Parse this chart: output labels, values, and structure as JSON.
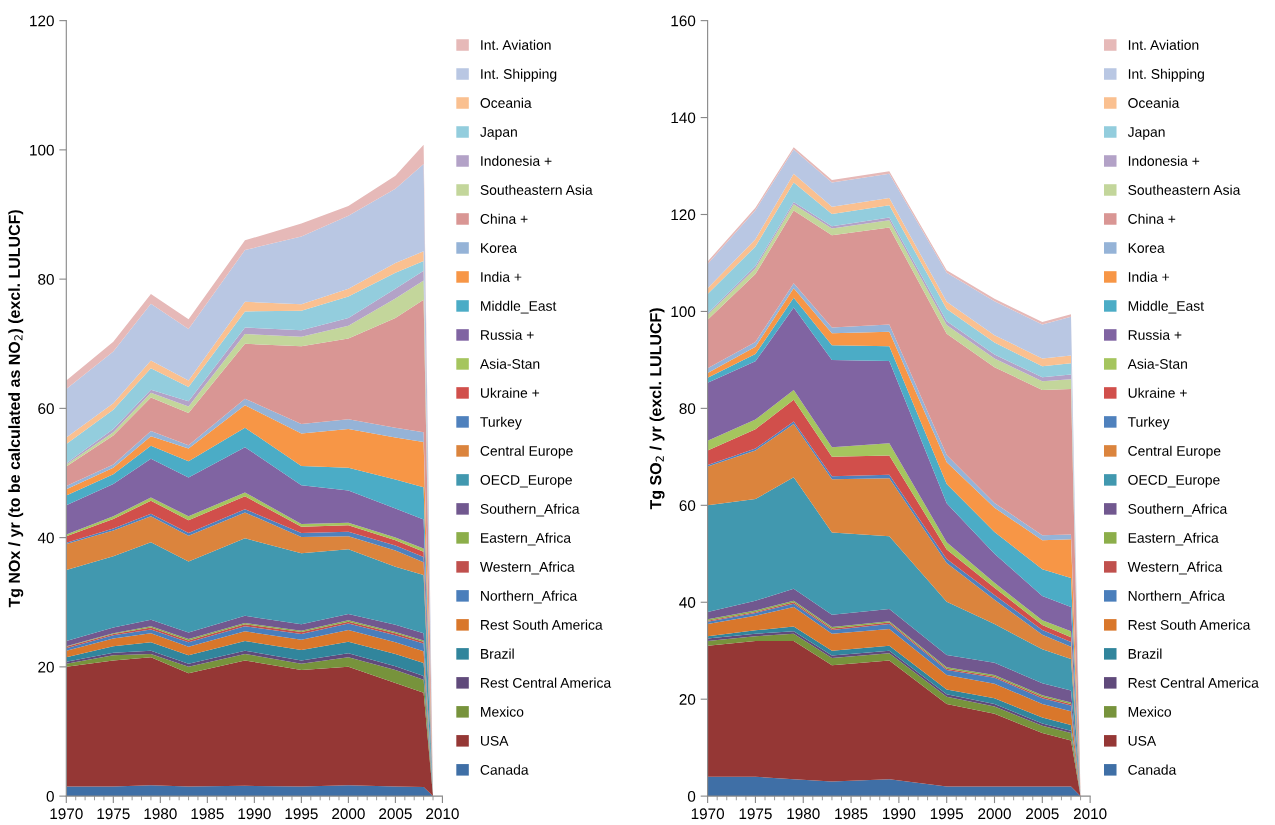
{
  "chart_data": [
    {
      "type": "area",
      "stacked": true,
      "ylabel": "Tg NOx / yr (to be calculated as NO$_{2}$) (excl. LULUCF)",
      "x": [
        1970,
        1975,
        1979,
        1983,
        1989,
        1995,
        2000,
        2005,
        2008,
        2009
      ],
      "xlim": [
        1970,
        2010
      ],
      "xticks": [
        1970,
        1975,
        1980,
        1985,
        1990,
        1995,
        2000,
        2005,
        2010
      ],
      "ylim": [
        0,
        120
      ],
      "yticks": [
        0,
        20,
        40,
        60,
        80,
        100,
        120
      ],
      "grid": false,
      "legend": "right",
      "series": [
        {
          "name": "Canada",
          "color": "#3f6fa6",
          "values": [
            1.5,
            1.5,
            1.7,
            1.5,
            1.6,
            1.5,
            1.7,
            1.5,
            1.4,
            0
          ]
        },
        {
          "name": "USA",
          "color": "#953735",
          "values": [
            18.5,
            19.5,
            19.8,
            17.5,
            19.4,
            18,
            18.3,
            16,
            14.6,
            0
          ]
        },
        {
          "name": "Mexico",
          "color": "#77933c",
          "values": [
            0.5,
            0.8,
            0.5,
            1,
            1,
            1,
            1.5,
            2,
            2,
            0
          ]
        },
        {
          "name": "Rest Central America",
          "color": "#604a7b",
          "values": [
            0.3,
            0.4,
            0.5,
            0.5,
            0.5,
            0.5,
            0.6,
            0.6,
            0.6,
            0
          ]
        },
        {
          "name": "Brazil",
          "color": "#31859c",
          "values": [
            0.7,
            1,
            1.3,
            1.3,
            1.5,
            1.6,
            1.8,
            1.9,
            2,
            0
          ]
        },
        {
          "name": "Rest South America",
          "color": "#d9772b",
          "values": [
            1,
            1.2,
            1.4,
            1.3,
            1.5,
            1.6,
            1.8,
            1.8,
            1.8,
            0
          ]
        },
        {
          "name": "Northern_Africa",
          "color": "#4a7ebb",
          "values": [
            0.4,
            0.5,
            0.6,
            0.7,
            0.8,
            0.9,
            1,
            1.1,
            1.2,
            0
          ]
        },
        {
          "name": "Western_Africa",
          "color": "#c0504d",
          "values": [
            0.2,
            0.2,
            0.3,
            0.3,
            0.3,
            0.3,
            0.3,
            0.3,
            0.3,
            0
          ]
        },
        {
          "name": "Eastern_Africa",
          "color": "#8cae4a",
          "values": [
            0.1,
            0.1,
            0.2,
            0.2,
            0.2,
            0.2,
            0.2,
            0.2,
            0.2,
            0
          ]
        },
        {
          "name": "Southern_Africa",
          "color": "#71588f",
          "values": [
            0.8,
            0.9,
            1,
            1,
            1.1,
            1,
            1,
            1.1,
            1.1,
            0
          ]
        },
        {
          "name": "OECD_Europe",
          "color": "#4198af",
          "values": [
            11,
            11,
            12,
            11,
            12,
            11,
            10,
            9,
            9,
            0
          ]
        },
        {
          "name": "Central Europe",
          "color": "#db843d",
          "values": [
            4,
            4,
            4,
            4,
            4,
            2.5,
            2,
            2.5,
            2,
            0
          ]
        },
        {
          "name": "Turkey",
          "color": "#4f81bd",
          "values": [
            0.2,
            0.3,
            0.4,
            0.4,
            0.5,
            0.6,
            0.7,
            0.8,
            0.8,
            0
          ]
        },
        {
          "name": "Ukraine +",
          "color": "#d14f4b",
          "values": [
            1,
            1.5,
            2,
            2,
            2,
            1,
            1,
            0.8,
            0.8,
            0
          ]
        },
        {
          "name": "Asia-Stan",
          "color": "#a5c55e",
          "values": [
            0.3,
            0.4,
            0.5,
            0.6,
            0.6,
            0.4,
            0.4,
            0.4,
            0.5,
            0
          ]
        },
        {
          "name": "Russia +",
          "color": "#8064a2",
          "values": [
            4.5,
            5,
            6,
            6,
            7,
            6,
            5,
            4.5,
            4.5,
            0
          ]
        },
        {
          "name": "Middle_East",
          "color": "#4bacc6",
          "values": [
            1.5,
            1.5,
            2,
            2.5,
            3,
            3,
            3.5,
            4.5,
            5,
            0
          ]
        },
        {
          "name": "India +",
          "color": "#f79646",
          "values": [
            1,
            1,
            1.5,
            2,
            3.5,
            5,
            6,
            6.5,
            7,
            0
          ]
        },
        {
          "name": "Korea",
          "color": "#95b3d7",
          "values": [
            0.5,
            0.5,
            0.8,
            0.5,
            1,
            1.5,
            1.5,
            1.5,
            1.5,
            0
          ]
        },
        {
          "name": "China +",
          "color": "#d99694",
          "values": [
            3,
            4.5,
            5.2,
            5,
            8.5,
            12,
            12.5,
            17,
            20.5,
            0
          ]
        },
        {
          "name": "Southeastern Asia",
          "color": "#c3d69b",
          "values": [
            0.3,
            0.5,
            0.7,
            1,
            1.5,
            1.5,
            2,
            3,
            3,
            0
          ]
        },
        {
          "name": "Indonesia +",
          "color": "#b3a2c7",
          "values": [
            0.2,
            0.5,
            0.5,
            0.8,
            1,
            1,
            1.2,
            1.5,
            1.5,
            0
          ]
        },
        {
          "name": "Japan",
          "color": "#93cddd",
          "values": [
            3,
            3,
            3.3,
            2.2,
            2.5,
            3,
            3.3,
            2.5,
            1.5,
            0
          ]
        },
        {
          "name": "Oceania",
          "color": "#fac090",
          "values": [
            1,
            1,
            1.2,
            1,
            1.5,
            1,
            1.2,
            1.5,
            1.5,
            0
          ]
        },
        {
          "name": "Int. Shipping",
          "color": "#b9c7e3",
          "values": [
            7.5,
            8,
            8.8,
            8,
            8,
            10.5,
            11.3,
            11.5,
            13.5,
            0
          ]
        },
        {
          "name": "Int. Aviation",
          "color": "#e6b9b8",
          "values": [
            1.3,
            1.5,
            1.5,
            1.5,
            1.5,
            2,
            1.5,
            2,
            3,
            0
          ]
        }
      ]
    },
    {
      "type": "area",
      "stacked": true,
      "ylabel": "Tg SO$_{2}$ / yr (excl. LULUCF)",
      "x": [
        1970,
        1975,
        1979,
        1983,
        1989,
        1995,
        2000,
        2005,
        2008,
        2009
      ],
      "xlim": [
        1970,
        2010
      ],
      "xticks": [
        1970,
        1975,
        1980,
        1985,
        1990,
        1995,
        2000,
        2005,
        2010
      ],
      "ylim": [
        0,
        160
      ],
      "yticks": [
        0,
        20,
        40,
        60,
        80,
        100,
        120,
        140,
        160
      ],
      "grid": false,
      "legend": "right",
      "series": [
        {
          "name": "Canada",
          "color": "#3f6fa6",
          "values": [
            4,
            4,
            3.5,
            3,
            3.5,
            2,
            2,
            2,
            2,
            0
          ]
        },
        {
          "name": "USA",
          "color": "#953735",
          "values": [
            27,
            28,
            28.5,
            24,
            24.5,
            17,
            15,
            11,
            9.5,
            0
          ]
        },
        {
          "name": "Mexico",
          "color": "#77933c",
          "values": [
            1,
            1,
            1.5,
            1.5,
            1.5,
            1.5,
            1.5,
            1.5,
            1.5,
            0
          ]
        },
        {
          "name": "Rest Central America",
          "color": "#604a7b",
          "values": [
            0.5,
            0.5,
            0.5,
            0.5,
            0.5,
            0.5,
            0.5,
            0.5,
            0.5,
            0
          ]
        },
        {
          "name": "Brazil",
          "color": "#31859c",
          "values": [
            0.5,
            0.7,
            1,
            1,
            1,
            1,
            1.2,
            1.2,
            1.2,
            0
          ]
        },
        {
          "name": "Rest South America",
          "color": "#d9772b",
          "values": [
            2.5,
            3,
            4,
            3.5,
            3.5,
            3,
            3,
            2.8,
            2.8,
            0
          ]
        },
        {
          "name": "Northern_Africa",
          "color": "#4a7ebb",
          "values": [
            0.5,
            0.6,
            0.7,
            0.8,
            1,
            1,
            1.2,
            1.2,
            1.2,
            0
          ]
        },
        {
          "name": "Western_Africa",
          "color": "#c0504d",
          "values": [
            0.2,
            0.2,
            0.3,
            0.3,
            0.3,
            0.3,
            0.3,
            0.3,
            0.3,
            0
          ]
        },
        {
          "name": "Eastern_Africa",
          "color": "#8cae4a",
          "values": [
            0.3,
            0.3,
            0.3,
            0.3,
            0.3,
            0.3,
            0.3,
            0.3,
            0.3,
            0
          ]
        },
        {
          "name": "Southern_Africa",
          "color": "#71588f",
          "values": [
            1.5,
            2,
            2.5,
            2.5,
            2.5,
            2.5,
            2.5,
            2.5,
            2.5,
            0
          ]
        },
        {
          "name": "OECD_Europe",
          "color": "#4198af",
          "values": [
            22,
            21,
            23,
            17,
            15,
            11,
            8,
            7,
            6.5,
            0
          ]
        },
        {
          "name": "Central Europe",
          "color": "#db843d",
          "values": [
            8,
            10,
            11,
            11,
            12,
            8,
            5,
            3,
            2.5,
            0
          ]
        },
        {
          "name": "Turkey",
          "color": "#4f81bd",
          "values": [
            0.3,
            0.4,
            0.5,
            0.6,
            0.7,
            0.8,
            1,
            1,
            1,
            0
          ]
        },
        {
          "name": "Ukraine +",
          "color": "#d14f4b",
          "values": [
            3,
            4,
            4.5,
            4,
            4,
            2,
            1.5,
            1,
            1,
            0
          ]
        },
        {
          "name": "Asia-Stan",
          "color": "#a5c55e",
          "values": [
            2,
            2,
            2,
            2,
            2.5,
            1.5,
            1,
            1,
            1.2,
            0
          ]
        },
        {
          "name": "Russia +",
          "color": "#8064a2",
          "values": [
            12,
            12,
            17,
            18,
            17,
            8,
            6,
            5,
            5,
            0
          ]
        },
        {
          "name": "Middle_East",
          "color": "#4bacc6",
          "values": [
            1,
            1.5,
            2,
            3,
            3,
            4,
            4.5,
            5.5,
            6,
            0
          ]
        },
        {
          "name": "India +",
          "color": "#f79646",
          "values": [
            1,
            1.5,
            2,
            2.5,
            3,
            4.5,
            5,
            6,
            8,
            0
          ]
        },
        {
          "name": "Korea",
          "color": "#95b3d7",
          "values": [
            1,
            1,
            1,
            1.2,
            1.5,
            1.5,
            1,
            1,
            1,
            0
          ]
        },
        {
          "name": "China +",
          "color": "#d99694",
          "values": [
            10,
            14,
            15,
            19,
            20,
            25,
            28,
            30,
            30,
            0
          ]
        },
        {
          "name": "Southeastern Asia",
          "color": "#c3d69b",
          "values": [
            1,
            1.2,
            1.3,
            1.4,
            1.5,
            1.8,
            1.8,
            1.8,
            2,
            0
          ]
        },
        {
          "name": "Indonesia +",
          "color": "#b3a2c7",
          "values": [
            0.3,
            0.5,
            0.5,
            0.5,
            0.6,
            0.8,
            0.8,
            0.8,
            1,
            0
          ]
        },
        {
          "name": "Japan",
          "color": "#93cddd",
          "values": [
            4,
            4,
            4,
            2.5,
            2.5,
            2.5,
            2.5,
            2.3,
            2.3,
            0
          ]
        },
        {
          "name": "Oceania",
          "color": "#fac090",
          "values": [
            1.2,
            1.5,
            1.8,
            1.5,
            1.5,
            1.5,
            1.5,
            1.6,
            1.6,
            0
          ]
        },
        {
          "name": "Int. Shipping",
          "color": "#b9c7e3",
          "values": [
            5,
            6,
            5,
            5,
            5,
            6,
            7,
            7,
            8,
            0
          ]
        },
        {
          "name": "Int. Aviation",
          "color": "#e6b9b8",
          "values": [
            0.5,
            0.5,
            0.5,
            0.5,
            0.5,
            0.5,
            0.5,
            0.5,
            0.5,
            0
          ]
        }
      ]
    }
  ]
}
